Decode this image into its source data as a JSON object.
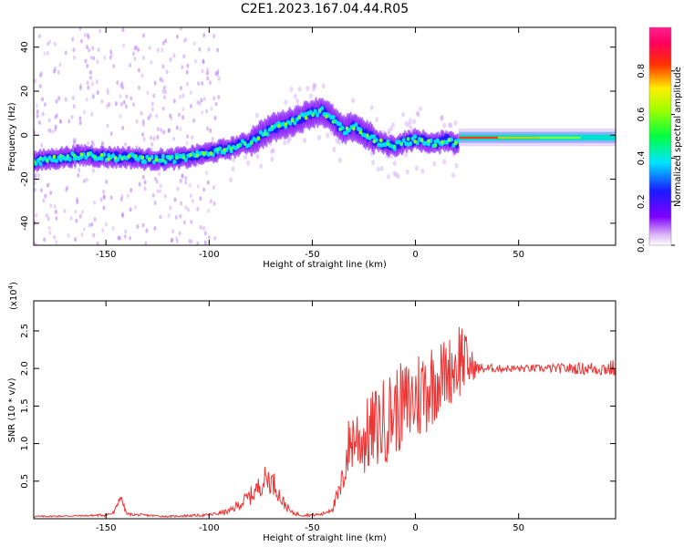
{
  "title": "C2E1.2023.167.04.44.R05",
  "colors": {
    "snr_line": "#ee3333",
    "axis": "#000000",
    "background": "#ffffff"
  },
  "chart_data": [
    {
      "type": "heatmap",
      "name": "spectrogram",
      "xlabel": "Height of straight line (km)",
      "ylabel": "Frequency (Hz)",
      "xlim": [
        -185,
        97
      ],
      "ylim": [
        -50,
        49
      ],
      "xticks": [
        -150,
        -100,
        -50,
        0,
        50
      ],
      "yticks": [
        -40,
        -20,
        0,
        20,
        40
      ],
      "grid": false,
      "colorbar": {
        "label": "Normalized spectral amplitude",
        "range": [
          0,
          1
        ],
        "ticks": [
          "0.0",
          "0.2",
          "0.4",
          "0.6",
          "0.8"
        ],
        "colormap": "rainbow (purple-blue-cyan-green-yellow-red-magenta)",
        "position": "right"
      },
      "ridge": {
        "description": "peak frequency trace",
        "height_km": [
          -185,
          -170,
          -160,
          -150,
          -140,
          -130,
          -120,
          -110,
          -100,
          -90,
          -80,
          -70,
          -60,
          -55,
          -50,
          -45,
          -40,
          -35,
          -30,
          -25,
          -20,
          -15,
          -10,
          -5,
          0,
          5,
          10,
          15,
          20,
          22,
          30,
          50,
          70,
          97
        ],
        "frequency_hz": [
          -12,
          -10,
          -9,
          -10,
          -10,
          -11,
          -11,
          -10,
          -8,
          -6,
          -3,
          3,
          6,
          8,
          10,
          11,
          7,
          2,
          4,
          1,
          -2,
          -4,
          -5,
          -3,
          -2,
          -3,
          -4,
          -2,
          -4,
          -2,
          -2,
          -1,
          -1,
          -1
        ]
      }
    },
    {
      "type": "line",
      "name": "snr",
      "xlabel": "Height of straight line (km)",
      "ylabel": "SNR (10 * v/v)",
      "yscale_label": "(x10",
      "yscale_exponent": "4",
      "yscale_close": ")",
      "xlim": [
        -185,
        97
      ],
      "ylim": [
        0,
        2.9
      ],
      "xticks": [
        -150,
        -100,
        -50,
        0,
        50
      ],
      "yticks": [
        0.5,
        1.0,
        1.5,
        2.0,
        2.5
      ],
      "ytick_labels": [
        "0.5",
        "1.0",
        "1.5",
        "2.0",
        "2.5"
      ],
      "grid": false,
      "series": [
        {
          "color": "#ee3333",
          "envelope_height_km": [
            -185,
            -160,
            -150,
            -146,
            -143,
            -140,
            -120,
            -100,
            -90,
            -85,
            -80,
            -75,
            -72,
            -68,
            -65,
            -60,
            -55,
            -50,
            -45,
            -40,
            -36,
            -33,
            -30,
            -25,
            -20,
            -15,
            -10,
            -5,
            0,
            5,
            10,
            15,
            20,
            22,
            25,
            30,
            40,
            60,
            80,
            90,
            97
          ],
          "envelope_snr_x10e4": [
            0.03,
            0.04,
            0.05,
            0.08,
            0.3,
            0.06,
            0.03,
            0.05,
            0.1,
            0.2,
            0.3,
            0.45,
            0.55,
            0.45,
            0.25,
            0.08,
            0.05,
            0.05,
            0.06,
            0.15,
            0.4,
            0.9,
            1.1,
            1.05,
            1.2,
            1.3,
            1.45,
            1.5,
            1.6,
            1.75,
            1.85,
            1.95,
            2.05,
            2.2,
            2.05,
            2.0,
            2.0,
            2.0,
            2.0,
            2.0,
            2.0
          ],
          "noise_amplitude_x10e4": [
            0.01,
            0.01,
            0.02,
            0.03,
            0.05,
            0.02,
            0.01,
            0.02,
            0.04,
            0.08,
            0.12,
            0.15,
            0.2,
            0.15,
            0.1,
            0.03,
            0.02,
            0.02,
            0.02,
            0.06,
            0.2,
            0.4,
            0.45,
            0.5,
            0.55,
            0.6,
            0.6,
            0.6,
            0.65,
            0.65,
            0.55,
            0.45,
            0.5,
            0.6,
            0.35,
            0.08,
            0.05,
            0.05,
            0.08,
            0.1,
            0.12
          ]
        }
      ]
    }
  ]
}
